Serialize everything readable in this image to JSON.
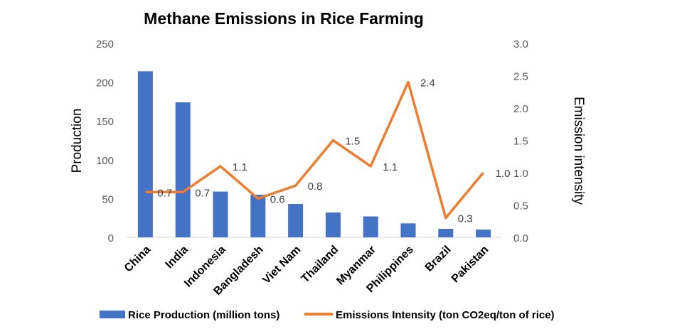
{
  "chart_data": {
    "type": "bar",
    "title": "Methane Emissions in Rice Farming",
    "categories": [
      "China",
      "India",
      "Indonesia",
      "Bangladesh",
      "Viet Nam",
      "Thailand",
      "Myanmar",
      "Philippines",
      "Brazil",
      "Pakistan"
    ],
    "series": [
      {
        "name": "Rice Production (million tons)",
        "type": "bar",
        "axis": "left",
        "color": "#4472c4",
        "values": [
          214,
          174,
          59,
          55,
          43,
          32,
          27,
          18,
          11,
          10
        ]
      },
      {
        "name": "Emissions Intensity (ton CO2eq/ton of rice)",
        "type": "line",
        "axis": "right",
        "color": "#ed7d31",
        "values": [
          0.7,
          0.7,
          1.1,
          0.6,
          0.8,
          1.5,
          1.1,
          2.4,
          0.3,
          1.0
        ],
        "labels": [
          "0.7",
          "0.7",
          "1.1",
          "0.6",
          "0.8",
          "1.5",
          "1.1",
          "2.4",
          "0.3",
          "1.0"
        ]
      }
    ],
    "ylabel": "Production",
    "y2label": "Emission intensity",
    "ylim": [
      0,
      250
    ],
    "y2lim": [
      0,
      3.0
    ],
    "yticks": [
      "0",
      "50",
      "100",
      "150",
      "200",
      "250"
    ],
    "y2ticks": [
      "0.0",
      "0.5",
      "1.0",
      "1.5",
      "2.0",
      "2.5",
      "3.0"
    ],
    "grid": false,
    "legend_position": "bottom"
  }
}
